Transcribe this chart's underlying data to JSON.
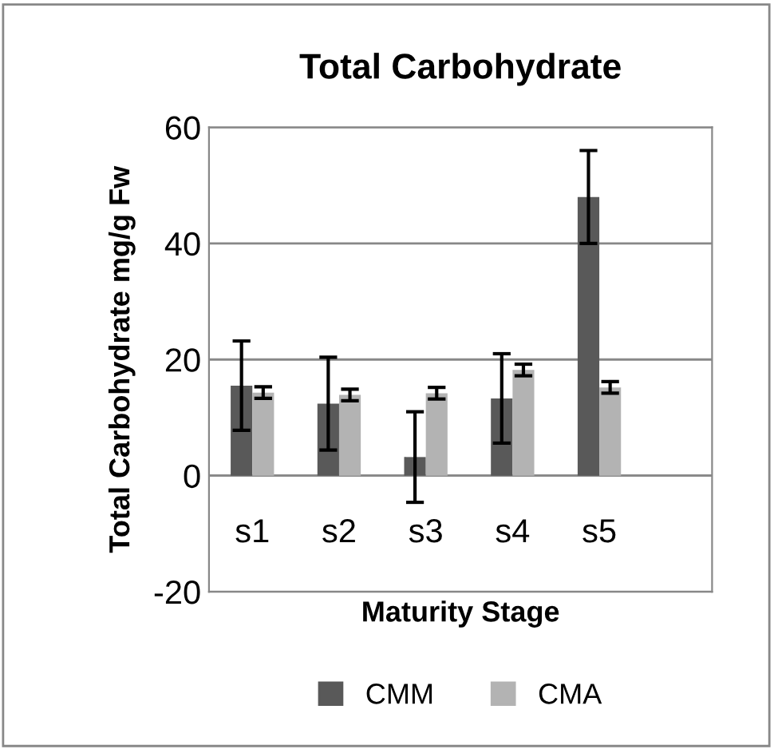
{
  "chart_data": {
    "type": "bar",
    "title": "Total Carbohydrate",
    "xlabel": "Maturity Stage",
    "ylabel": "Total Carbohydrate mg/g Fw",
    "categories": [
      "s1",
      "s2",
      "s3",
      "s4",
      "s5"
    ],
    "series": [
      {
        "name": "CMM",
        "color": "#595959",
        "values": [
          15.5,
          12.4,
          3.2,
          13.3,
          48
        ],
        "errors": [
          7.7,
          8,
          7.8,
          7.7,
          8
        ]
      },
      {
        "name": "CMA",
        "color": "#b3b3b3",
        "values": [
          14.3,
          13.9,
          14.2,
          18.2,
          15.2
        ],
        "errors": [
          1,
          1,
          1,
          1,
          1
        ]
      }
    ],
    "ylim": [
      -20,
      60
    ],
    "yticks": [
      -20,
      0,
      20,
      40,
      60
    ],
    "grid": "y",
    "legend": "bottom"
  }
}
